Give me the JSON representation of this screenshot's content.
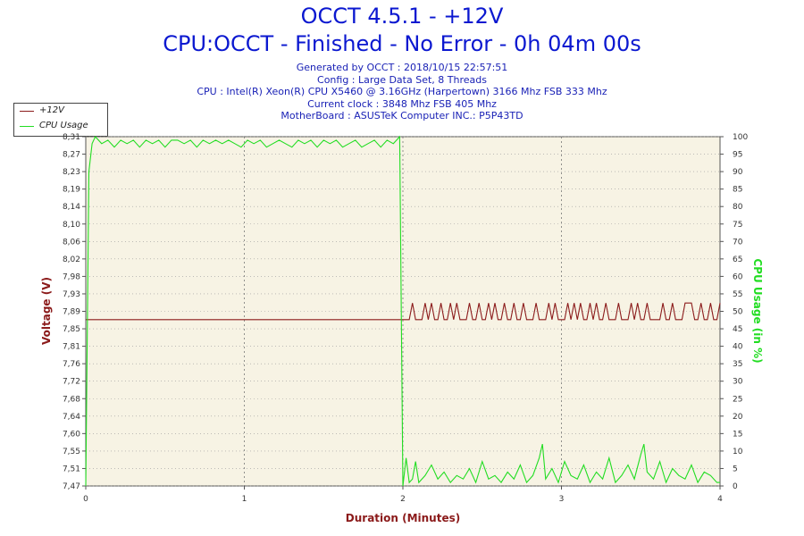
{
  "header": {
    "title": "OCCT 4.5.1 - +12V",
    "subtitle": "CPU:OCCT - Finished - No Error - 0h 04m 00s",
    "info": [
      "Generated by OCCT : 2018/10/15 22:57:51",
      "Config : Large Data Set, 8 Threads",
      "CPU : Intel(R) Xeon(R) CPU X5460 @ 3.16GHz (Harpertown) 3166 Mhz FSB 333 Mhz",
      "Current clock : 3848 Mhz FSB 405 Mhz",
      "MotherBoard : ASUSTeK Computer INC.: P5P43TD"
    ]
  },
  "legend": {
    "items": [
      {
        "label": "+12V",
        "color": "#8b1a1a"
      },
      {
        "label": "CPU Usage",
        "color": "#22dd22"
      }
    ]
  },
  "chart_data": {
    "type": "line",
    "xlabel": "Duration (Minutes)",
    "ylabel": "Voltage (V)",
    "ylabel_right": "CPU Usage (in %)",
    "x_ticks": [
      "0",
      "1",
      "2",
      "3",
      "4"
    ],
    "y_ticks": [
      "7,47",
      "7,51",
      "7,55",
      "7,60",
      "7,64",
      "7,68",
      "7,72",
      "7,76",
      "7,81",
      "7,85",
      "7,89",
      "7,93",
      "7,98",
      "8,02",
      "8,06",
      "8,10",
      "8,14",
      "8,19",
      "8,23",
      "8,27",
      "8,31"
    ],
    "y2_ticks": [
      "0",
      "5",
      "10",
      "15",
      "20",
      "25",
      "30",
      "35",
      "40",
      "45",
      "50",
      "55",
      "60",
      "65",
      "70",
      "75",
      "80",
      "85",
      "90",
      "95",
      "100"
    ],
    "xlim": [
      0,
      4
    ],
    "ylim": [
      7.47,
      8.31
    ],
    "y2lim": [
      0,
      100
    ],
    "grid": true,
    "series": [
      {
        "name": "+12V",
        "color": "#8b1a1a",
        "axis": "left",
        "x": [
          0,
          2.0,
          2.02,
          2.04,
          2.06,
          2.08,
          2.1,
          2.12,
          2.14,
          2.16,
          2.18,
          2.2,
          2.22,
          2.24,
          2.26,
          2.28,
          2.3,
          2.32,
          2.34,
          2.36,
          2.38,
          2.4,
          2.42,
          2.44,
          2.46,
          2.48,
          2.5,
          2.52,
          2.54,
          2.56,
          2.58,
          2.6,
          2.62,
          2.64,
          2.66,
          2.68,
          2.7,
          2.72,
          2.74,
          2.76,
          2.78,
          2.8,
          2.82,
          2.84,
          2.86,
          2.88,
          2.9,
          2.92,
          2.94,
          2.96,
          2.98,
          3.0,
          3.02,
          3.04,
          3.06,
          3.08,
          3.1,
          3.12,
          3.14,
          3.16,
          3.18,
          3.2,
          3.22,
          3.24,
          3.26,
          3.28,
          3.3,
          3.32,
          3.34,
          3.36,
          3.38,
          3.4,
          3.42,
          3.44,
          3.46,
          3.48,
          3.5,
          3.52,
          3.54,
          3.56,
          3.58,
          3.6,
          3.62,
          3.64,
          3.66,
          3.68,
          3.7,
          3.72,
          3.74,
          3.76,
          3.78,
          3.8,
          3.82,
          3.84,
          3.86,
          3.88,
          3.9,
          3.92,
          3.94,
          3.96,
          3.98,
          4.0
        ],
        "values": [
          7.87,
          7.87,
          7.87,
          7.87,
          7.91,
          7.87,
          7.87,
          7.87,
          7.91,
          7.87,
          7.91,
          7.87,
          7.87,
          7.91,
          7.87,
          7.87,
          7.91,
          7.87,
          7.91,
          7.87,
          7.87,
          7.87,
          7.91,
          7.87,
          7.87,
          7.91,
          7.87,
          7.87,
          7.91,
          7.87,
          7.91,
          7.87,
          7.87,
          7.91,
          7.87,
          7.87,
          7.91,
          7.87,
          7.87,
          7.91,
          7.87,
          7.87,
          7.87,
          7.91,
          7.87,
          7.87,
          7.87,
          7.91,
          7.87,
          7.91,
          7.87,
          7.87,
          7.87,
          7.91,
          7.87,
          7.91,
          7.87,
          7.91,
          7.87,
          7.87,
          7.91,
          7.87,
          7.91,
          7.87,
          7.87,
          7.91,
          7.87,
          7.87,
          7.87,
          7.91,
          7.87,
          7.87,
          7.87,
          7.91,
          7.87,
          7.91,
          7.87,
          7.87,
          7.91,
          7.87,
          7.87,
          7.87,
          7.87,
          7.91,
          7.87,
          7.87,
          7.91,
          7.87,
          7.87,
          7.87,
          7.91,
          7.91,
          7.91,
          7.87,
          7.87,
          7.91,
          7.87,
          7.87,
          7.91,
          7.87,
          7.87,
          7.91
        ]
      },
      {
        "name": "CPU Usage",
        "color": "#22dd22",
        "axis": "right",
        "x": [
          0,
          0.02,
          0.04,
          0.06,
          0.1,
          0.14,
          0.18,
          0.22,
          0.26,
          0.3,
          0.34,
          0.38,
          0.42,
          0.46,
          0.5,
          0.54,
          0.58,
          0.62,
          0.66,
          0.7,
          0.74,
          0.78,
          0.82,
          0.86,
          0.9,
          0.94,
          0.98,
          1.02,
          1.06,
          1.1,
          1.14,
          1.18,
          1.22,
          1.26,
          1.3,
          1.34,
          1.38,
          1.42,
          1.46,
          1.5,
          1.54,
          1.58,
          1.62,
          1.66,
          1.7,
          1.74,
          1.78,
          1.82,
          1.86,
          1.9,
          1.94,
          1.96,
          1.98,
          2.0,
          2.02,
          2.04,
          2.06,
          2.08,
          2.1,
          2.14,
          2.18,
          2.22,
          2.26,
          2.3,
          2.34,
          2.38,
          2.42,
          2.46,
          2.5,
          2.54,
          2.58,
          2.62,
          2.66,
          2.7,
          2.74,
          2.78,
          2.82,
          2.86,
          2.88,
          2.9,
          2.94,
          2.98,
          3.02,
          3.06,
          3.1,
          3.14,
          3.18,
          3.22,
          3.26,
          3.3,
          3.34,
          3.38,
          3.42,
          3.46,
          3.5,
          3.52,
          3.54,
          3.58,
          3.62,
          3.66,
          3.7,
          3.74,
          3.78,
          3.82,
          3.86,
          3.9,
          3.94,
          3.98,
          4.0
        ],
        "values": [
          0,
          90,
          98,
          100,
          98,
          99,
          97,
          99,
          98,
          99,
          97,
          99,
          98,
          99,
          97,
          99,
          99,
          98,
          99,
          97,
          99,
          98,
          99,
          98,
          99,
          98,
          97,
          99,
          98,
          99,
          97,
          98,
          99,
          98,
          97,
          99,
          98,
          99,
          97,
          99,
          98,
          99,
          97,
          98,
          99,
          97,
          98,
          99,
          97,
          99,
          98,
          99,
          100,
          0,
          8,
          1,
          2,
          7,
          1,
          3,
          6,
          2,
          4,
          1,
          3,
          2,
          5,
          1,
          7,
          2,
          3,
          1,
          4,
          2,
          6,
          1,
          3,
          8,
          12,
          2,
          5,
          1,
          7,
          3,
          2,
          6,
          1,
          4,
          2,
          8,
          1,
          3,
          6,
          2,
          9,
          12,
          4,
          2,
          7,
          1,
          5,
          3,
          2,
          6,
          1,
          4,
          3,
          1,
          1
        ]
      }
    ]
  }
}
